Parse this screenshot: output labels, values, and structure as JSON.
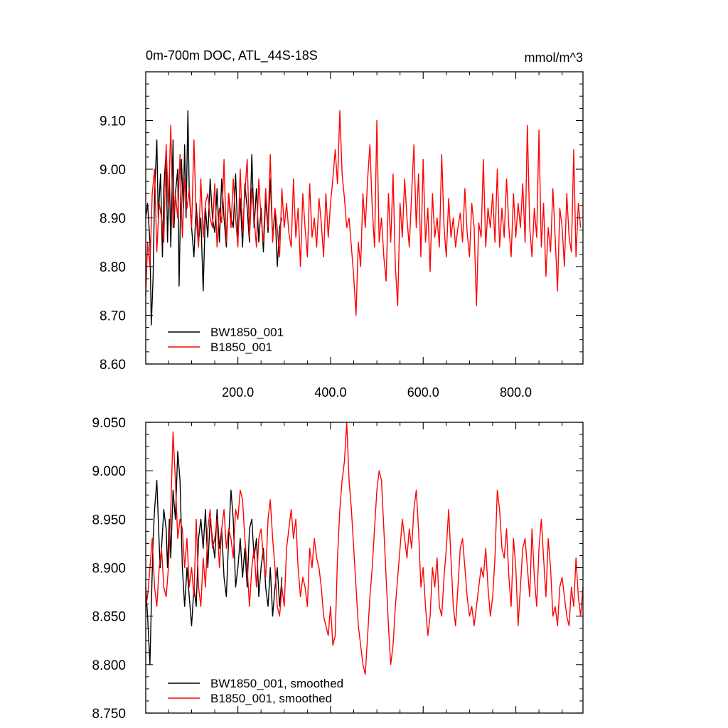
{
  "chart_data": [
    {
      "type": "line",
      "title": "0m-700m DOC, ATL_44S-18S",
      "units": "mmol/m^3",
      "xlim": [
        1,
        945
      ],
      "ylim": [
        8.6,
        9.2
      ],
      "xticks": [
        200,
        400,
        600,
        800
      ],
      "xtick_labels": [
        "200.0",
        "400.0",
        "600.0",
        "800.0"
      ],
      "yticks": [
        8.6,
        8.7,
        8.8,
        8.9,
        9.0,
        9.1
      ],
      "ytick_labels": [
        "8.60",
        "8.70",
        "8.80",
        "8.90",
        "9.00",
        "9.10"
      ],
      "legend_position": "bottom-left",
      "series": [
        {
          "name": "BW1850_001",
          "color": "#000000",
          "x": [
            1,
            5,
            10,
            13,
            17,
            20,
            25,
            28,
            33,
            37,
            40,
            45,
            48,
            52,
            55,
            60,
            62,
            65,
            70,
            73,
            78,
            82,
            85,
            88,
            92,
            95,
            100,
            105,
            110,
            115,
            120,
            125,
            130,
            135,
            140,
            145,
            150,
            155,
            160,
            165,
            170,
            175,
            180,
            185,
            190,
            195,
            200,
            205,
            210,
            215,
            220,
            225,
            230,
            235,
            240,
            245,
            250,
            255,
            260,
            265,
            270,
            275,
            280,
            285,
            290,
            295
          ],
          "y": [
            8.9,
            8.93,
            8.85,
            8.68,
            8.78,
            8.95,
            9.06,
            8.9,
            8.99,
            8.82,
            8.96,
            9.04,
            8.85,
            8.99,
            8.84,
            9.06,
            8.88,
            8.95,
            9.0,
            8.76,
            9.02,
            8.92,
            9.05,
            8.9,
            9.12,
            8.95,
            8.88,
            8.82,
            8.93,
            8.85,
            8.9,
            8.75,
            8.92,
            8.86,
            8.98,
            8.9,
            8.87,
            8.96,
            8.85,
            8.98,
            8.9,
            8.84,
            8.95,
            8.9,
            8.88,
            8.99,
            8.86,
            8.94,
            8.84,
            8.97,
            8.92,
            8.85,
            9.03,
            8.88,
            8.96,
            8.85,
            8.92,
            8.83,
            8.94,
            8.87,
            8.98,
            8.86,
            8.92,
            8.8,
            8.88,
            8.9
          ]
        },
        {
          "name": "B1850_001",
          "color": "#ff0000",
          "x": [
            1,
            5,
            10,
            15,
            20,
            25,
            30,
            35,
            40,
            45,
            50,
            55,
            60,
            65,
            70,
            75,
            80,
            85,
            90,
            95,
            100,
            105,
            110,
            115,
            120,
            125,
            130,
            135,
            140,
            145,
            150,
            155,
            160,
            165,
            170,
            175,
            180,
            185,
            190,
            195,
            200,
            205,
            210,
            215,
            220,
            225,
            230,
            235,
            240,
            245,
            250,
            255,
            260,
            265,
            270,
            275,
            280,
            285,
            290,
            295,
            300,
            305,
            310,
            315,
            320,
            325,
            330,
            335,
            340,
            345,
            350,
            355,
            360,
            365,
            370,
            375,
            380,
            385,
            390,
            395,
            400,
            405,
            410,
            415,
            420,
            425,
            430,
            435,
            440,
            445,
            450,
            455,
            460,
            465,
            470,
            475,
            480,
            485,
            490,
            495,
            500,
            505,
            510,
            515,
            520,
            525,
            530,
            535,
            540,
            545,
            550,
            555,
            560,
            565,
            570,
            575,
            580,
            585,
            590,
            595,
            600,
            605,
            610,
            615,
            620,
            625,
            630,
            635,
            640,
            645,
            650,
            655,
            660,
            665,
            670,
            675,
            680,
            685,
            690,
            695,
            700,
            705,
            710,
            715,
            720,
            725,
            730,
            735,
            740,
            745,
            750,
            755,
            760,
            765,
            770,
            775,
            780,
            785,
            790,
            795,
            800,
            805,
            810,
            815,
            820,
            825,
            830,
            835,
            840,
            845,
            850,
            855,
            860,
            865,
            870,
            875,
            880,
            885,
            890,
            895,
            900,
            905,
            910,
            915,
            920,
            925,
            930,
            935,
            940
          ],
          "y": [
            8.74,
            8.85,
            8.8,
            8.95,
            9.0,
            8.83,
            8.93,
            8.9,
            8.85,
            9.05,
            8.92,
            9.09,
            8.88,
            8.95,
            8.9,
            9.03,
            8.86,
            8.98,
            8.92,
            8.96,
            8.88,
            9.06,
            8.9,
            8.84,
            8.98,
            8.86,
            8.93,
            8.95,
            8.9,
            8.88,
            8.97,
            8.84,
            8.92,
            8.89,
            9.02,
            8.85,
            8.95,
            8.88,
            8.98,
            8.9,
            8.84,
            9.0,
            8.87,
            8.95,
            9.02,
            8.86,
            8.96,
            8.9,
            8.84,
            8.98,
            8.9,
            8.85,
            8.96,
            8.88,
            9.03,
            8.85,
            8.92,
            8.88,
            8.82,
            8.96,
            8.88,
            8.93,
            8.87,
            8.84,
            8.98,
            8.86,
            8.92,
            8.8,
            8.95,
            8.88,
            8.82,
            8.97,
            8.86,
            8.9,
            8.84,
            8.94,
            8.89,
            8.82,
            8.95,
            8.86,
            8.93,
            8.98,
            9.04,
            8.97,
            9.12,
            8.99,
            8.94,
            8.88,
            8.9,
            8.84,
            8.78,
            8.7,
            8.85,
            8.8,
            8.95,
            8.88,
            8.98,
            9.05,
            8.92,
            8.84,
            9.1,
            8.85,
            8.9,
            8.82,
            8.77,
            8.95,
            8.85,
            8.99,
            8.8,
            8.72,
            8.93,
            8.86,
            8.98,
            8.9,
            8.84,
            8.95,
            9.05,
            8.88,
            8.99,
            8.82,
            9.02,
            8.85,
            8.92,
            8.79,
            8.95,
            8.86,
            8.9,
            8.84,
            9.03,
            8.88,
            8.82,
            8.94,
            8.86,
            8.9,
            8.84,
            8.88,
            8.91,
            8.85,
            8.96,
            8.87,
            8.82,
            8.93,
            8.88,
            8.72,
            8.89,
            8.86,
            9.02,
            8.84,
            8.92,
            8.88,
            8.95,
            8.85,
            9.0,
            8.84,
            8.92,
            8.86,
            8.98,
            8.88,
            8.82,
            8.95,
            8.86,
            8.93,
            8.88,
            8.97,
            8.85,
            9.09,
            8.88,
            8.82,
            8.92,
            8.86,
            9.08,
            8.84,
            8.93,
            8.78,
            8.88,
            8.83,
            8.96,
            8.86,
            8.75,
            8.92,
            8.88,
            8.8,
            8.95,
            8.86,
            8.83,
            9.04,
            8.82,
            8.93,
            8.88
          ]
        }
      ]
    },
    {
      "type": "line",
      "xlim": [
        1,
        945
      ],
      "ylim": [
        8.75,
        9.05
      ],
      "xticks": [
        200,
        400,
        600,
        800
      ],
      "yticks": [
        8.75,
        8.8,
        8.85,
        8.9,
        8.95,
        9.0,
        9.05
      ],
      "ytick_labels": [
        "8.750",
        "8.800",
        "8.850",
        "8.900",
        "8.950",
        "9.000",
        "9.050"
      ],
      "legend_position": "bottom-left",
      "series": [
        {
          "name": "BW1850_001, smoothed",
          "color": "#000000",
          "x": [
            1,
            5,
            10,
            13,
            17,
            20,
            25,
            28,
            32,
            35,
            40,
            45,
            48,
            52,
            55,
            60,
            65,
            70,
            75,
            80,
            85,
            90,
            95,
            100,
            105,
            110,
            115,
            120,
            125,
            130,
            135,
            140,
            145,
            150,
            155,
            160,
            165,
            170,
            175,
            180,
            185,
            190,
            195,
            200,
            205,
            210,
            215,
            220,
            225,
            230,
            235,
            240,
            245,
            250,
            255,
            260,
            265,
            270,
            275,
            280,
            285,
            290,
            295
          ],
          "y": [
            8.88,
            8.85,
            8.8,
            8.86,
            8.93,
            8.96,
            8.99,
            8.95,
            8.9,
            8.92,
            8.96,
            8.94,
            8.9,
            8.95,
            8.91,
            8.98,
            8.95,
            9.02,
            8.99,
            8.9,
            8.86,
            8.9,
            8.87,
            8.84,
            8.88,
            8.86,
            8.93,
            8.95,
            8.92,
            8.96,
            8.9,
            8.95,
            8.93,
            8.91,
            8.96,
            8.92,
            8.94,
            8.89,
            8.87,
            8.93,
            8.98,
            8.95,
            8.88,
            8.9,
            8.93,
            8.89,
            8.92,
            8.88,
            8.94,
            8.95,
            8.91,
            8.93,
            8.87,
            8.9,
            8.92,
            8.88,
            8.86,
            8.9,
            8.85,
            8.88,
            8.9,
            8.86,
            8.89
          ]
        },
        {
          "name": "B1850_001, smoothed",
          "color": "#ff0000",
          "x": [
            1,
            5,
            10,
            15,
            20,
            25,
            30,
            35,
            40,
            45,
            50,
            55,
            60,
            65,
            70,
            75,
            80,
            85,
            90,
            95,
            100,
            105,
            110,
            115,
            120,
            125,
            130,
            135,
            140,
            145,
            150,
            155,
            160,
            165,
            170,
            175,
            180,
            185,
            190,
            195,
            200,
            205,
            210,
            215,
            220,
            225,
            230,
            235,
            240,
            245,
            250,
            255,
            260,
            265,
            270,
            275,
            280,
            285,
            290,
            295,
            300,
            305,
            310,
            315,
            320,
            325,
            330,
            335,
            340,
            345,
            350,
            355,
            360,
            365,
            370,
            375,
            380,
            385,
            390,
            395,
            400,
            405,
            410,
            415,
            420,
            425,
            430,
            435,
            440,
            445,
            450,
            455,
            460,
            465,
            470,
            475,
            480,
            485,
            490,
            495,
            500,
            505,
            510,
            515,
            520,
            525,
            530,
            535,
            540,
            545,
            550,
            555,
            560,
            565,
            570,
            575,
            580,
            585,
            590,
            595,
            600,
            605,
            610,
            615,
            620,
            625,
            630,
            635,
            640,
            645,
            650,
            655,
            660,
            665,
            670,
            675,
            680,
            685,
            690,
            695,
            700,
            705,
            710,
            715,
            720,
            725,
            730,
            735,
            740,
            745,
            750,
            755,
            760,
            765,
            770,
            775,
            780,
            785,
            790,
            795,
            800,
            805,
            810,
            815,
            820,
            825,
            830,
            835,
            840,
            845,
            850,
            855,
            860,
            865,
            870,
            875,
            880,
            885,
            890,
            895,
            900,
            905,
            910,
            915,
            920,
            925,
            930,
            935,
            940,
            945
          ],
          "y": [
            8.86,
            8.87,
            8.9,
            8.93,
            8.88,
            8.86,
            8.9,
            8.92,
            8.88,
            8.87,
            8.9,
            8.96,
            9.04,
            8.99,
            8.93,
            8.95,
            8.94,
            8.9,
            8.93,
            8.88,
            8.9,
            8.87,
            8.95,
            8.88,
            8.86,
            8.91,
            8.88,
            8.94,
            8.96,
            8.92,
            8.93,
            8.95,
            8.9,
            8.94,
            8.96,
            8.92,
            8.94,
            8.93,
            8.91,
            8.96,
            8.95,
            8.98,
            8.97,
            8.93,
            8.9,
            8.86,
            8.9,
            8.92,
            8.88,
            8.93,
            8.94,
            8.91,
            8.89,
            8.95,
            8.97,
            8.93,
            8.9,
            8.86,
            8.85,
            8.88,
            8.86,
            8.92,
            8.94,
            8.96,
            8.93,
            8.95,
            8.9,
            8.87,
            8.89,
            8.88,
            8.86,
            8.92,
            8.9,
            8.93,
            8.91,
            8.9,
            8.88,
            8.85,
            8.84,
            8.83,
            8.86,
            8.82,
            8.83,
            8.91,
            8.96,
            8.99,
            9.01,
            9.05,
            8.99,
            8.96,
            8.92,
            8.88,
            8.84,
            8.82,
            8.8,
            8.79,
            8.83,
            8.87,
            8.9,
            8.94,
            8.98,
            9.0,
            8.99,
            8.94,
            8.89,
            8.84,
            8.8,
            8.82,
            8.86,
            8.89,
            8.92,
            8.95,
            8.93,
            8.91,
            8.94,
            8.92,
            8.96,
            8.98,
            8.94,
            8.88,
            8.9,
            8.86,
            8.83,
            8.85,
            8.9,
            8.88,
            8.91,
            8.86,
            8.85,
            8.89,
            8.92,
            8.96,
            8.91,
            8.86,
            8.84,
            8.88,
            8.92,
            8.93,
            8.9,
            8.87,
            8.85,
            8.86,
            8.84,
            8.86,
            8.88,
            8.9,
            8.89,
            8.92,
            8.88,
            8.85,
            8.87,
            8.91,
            8.98,
            8.96,
            8.92,
            8.91,
            8.94,
            8.89,
            8.86,
            8.93,
            8.9,
            8.84,
            8.88,
            8.92,
            8.93,
            8.9,
            8.87,
            8.94,
            8.89,
            8.86,
            8.92,
            8.95,
            8.91,
            8.87,
            8.93,
            8.9,
            8.85,
            8.86,
            8.84,
            8.88,
            8.89,
            8.87,
            8.85,
            8.84,
            8.88,
            8.86,
            8.91,
            8.87,
            8.85,
            8.88
          ]
        }
      ]
    }
  ]
}
